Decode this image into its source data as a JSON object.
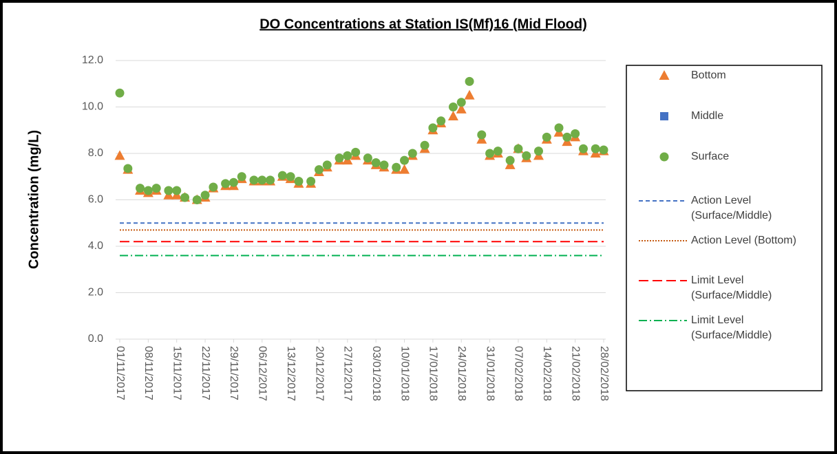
{
  "chart_data": {
    "type": "scatter",
    "title": "DO Concentrations at Station IS(Mf)16 (Mid Flood)",
    "y_label": "Concentration (mg/L)",
    "x": [
      "01/11/2017",
      "03/11/2017",
      "06/11/2017",
      "08/11/2017",
      "10/11/2017",
      "13/11/2017",
      "15/11/2017",
      "17/11/2017",
      "20/11/2017",
      "22/11/2017",
      "24/11/2017",
      "27/11/2017",
      "29/11/2017",
      "01/12/2017",
      "04/12/2017",
      "06/12/2017",
      "08/12/2017",
      "11/12/2017",
      "13/12/2017",
      "15/12/2017",
      "18/12/2017",
      "20/12/2017",
      "22/12/2017",
      "25/12/2017",
      "27/12/2017",
      "29/12/2017",
      "01/01/2018",
      "03/01/2018",
      "05/01/2018",
      "08/01/2018",
      "10/01/2018",
      "12/01/2018",
      "15/01/2018",
      "17/01/2018",
      "19/01/2018",
      "22/01/2018",
      "24/01/2018",
      "26/01/2018",
      "29/01/2018",
      "31/01/2018",
      "02/02/2018",
      "05/02/2018",
      "07/02/2018",
      "09/02/2018",
      "12/02/2018",
      "14/02/2018",
      "17/02/2018",
      "19/02/2018",
      "21/02/2018",
      "23/02/2018",
      "26/02/2018",
      "28/02/2018"
    ],
    "series": [
      {
        "name": "Bottom",
        "color": "#ed7d31",
        "marker": "triangle",
        "values": [
          7.9,
          7.3,
          6.4,
          6.3,
          6.4,
          6.2,
          6.2,
          6.1,
          6.0,
          6.1,
          6.5,
          6.6,
          6.6,
          6.9,
          6.8,
          6.8,
          6.8,
          7.0,
          6.9,
          6.7,
          6.7,
          7.2,
          7.4,
          7.7,
          7.7,
          7.9,
          7.7,
          7.5,
          7.4,
          7.3,
          7.3,
          7.9,
          8.2,
          9.0,
          9.3,
          9.6,
          9.9,
          10.5,
          8.6,
          7.9,
          8.0,
          7.5,
          8.2,
          7.8,
          7.9,
          8.6,
          8.9,
          8.5,
          8.7,
          8.1,
          8.0,
          8.1
        ]
      },
      {
        "name": "Middle",
        "color": "#4472c4",
        "marker": "square",
        "values": [
          null,
          null,
          null,
          null,
          null,
          null,
          null,
          null,
          null,
          null,
          null,
          null,
          null,
          null,
          null,
          null,
          null,
          null,
          null,
          null,
          null,
          null,
          null,
          null,
          null,
          null,
          null,
          null,
          null,
          null,
          null,
          null,
          null,
          null,
          null,
          null,
          null,
          null,
          null,
          null,
          null,
          null,
          null,
          null,
          null,
          null,
          null,
          null,
          null,
          null,
          null,
          null
        ]
      },
      {
        "name": "Surface",
        "color": "#70ad47",
        "marker": "circle",
        "values": [
          10.6,
          7.35,
          6.5,
          6.4,
          6.5,
          6.4,
          6.4,
          6.1,
          6.0,
          6.2,
          6.55,
          6.7,
          6.75,
          7.0,
          6.85,
          6.85,
          6.85,
          7.05,
          7.0,
          6.8,
          6.8,
          7.3,
          7.5,
          7.8,
          7.9,
          8.05,
          7.8,
          7.6,
          7.5,
          7.4,
          7.7,
          8.0,
          8.35,
          9.1,
          9.4,
          10.0,
          10.2,
          11.1,
          8.8,
          8.0,
          8.1,
          7.7,
          8.2,
          7.9,
          8.1,
          8.7,
          9.1,
          8.7,
          8.85,
          8.2,
          8.2,
          8.15
        ]
      }
    ],
    "reference_lines": [
      {
        "name": "Action Level (Surface/Middle)",
        "value": 5.0,
        "color": "#4472c4",
        "dash": "6 4"
      },
      {
        "name": "Action Level (Bottom)",
        "value": 4.7,
        "color": "#c55a11",
        "dash": "2 2"
      },
      {
        "name": "Limit Level (Surface/Middle)",
        "value": 4.2,
        "color": "#ff0000",
        "dash": "14 6"
      },
      {
        "name": "Limit Level (Surface/Middle)",
        "value": 3.6,
        "color": "#00b050",
        "dash": "12 4 2 4"
      }
    ],
    "xlim": [
      "01/11/2017",
      "28/02/2018"
    ],
    "xticks": [
      "01/11/2017",
      "08/11/2017",
      "15/11/2017",
      "22/11/2017",
      "29/11/2017",
      "06/12/2017",
      "13/12/2017",
      "20/12/2017",
      "27/12/2017",
      "03/01/2018",
      "10/01/2018",
      "17/01/2018",
      "24/01/2018",
      "31/01/2018",
      "07/02/2018",
      "14/02/2018",
      "21/02/2018",
      "28/02/2018"
    ],
    "ylim": [
      0,
      12
    ],
    "yticks": [
      {
        "value": 0,
        "label": "0.0"
      },
      {
        "value": 2,
        "label": "2.0"
      },
      {
        "value": 4,
        "label": "4.0"
      },
      {
        "value": 6,
        "label": "6.0"
      },
      {
        "value": 8,
        "label": "8.0"
      },
      {
        "value": 10,
        "label": "10.0"
      },
      {
        "value": 12,
        "label": "12.0"
      }
    ],
    "grid": true,
    "legend": "right"
  }
}
